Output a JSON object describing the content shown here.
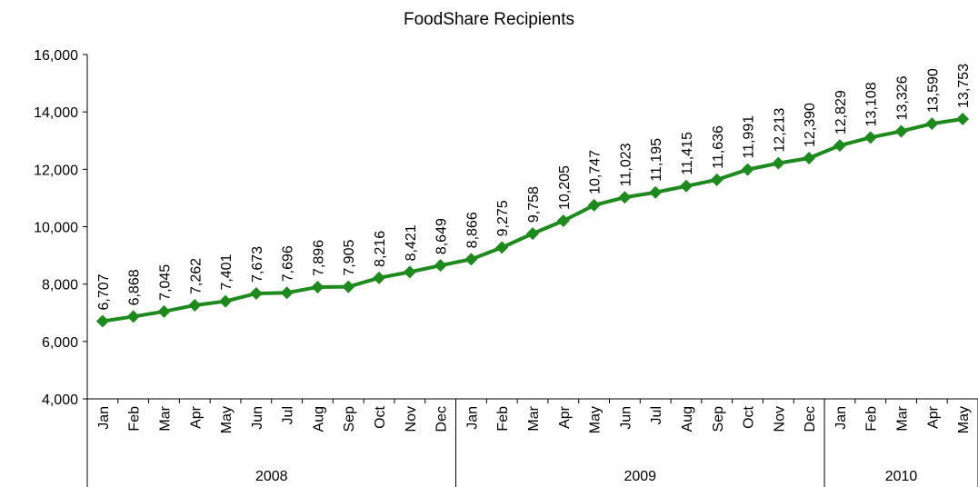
{
  "chart_data": {
    "type": "line",
    "title": "FoodShare Recipients",
    "categories": [
      "Jan",
      "Feb",
      "Mar",
      "Apr",
      "May",
      "Jun",
      "Jul",
      "Aug",
      "Sep",
      "Oct",
      "Nov",
      "Dec",
      "Jan",
      "Feb",
      "Mar",
      "Apr",
      "May",
      "Jun",
      "Jul",
      "Aug",
      "Sep",
      "Oct",
      "Nov",
      "Dec",
      "Jan",
      "Feb",
      "Mar",
      "Apr",
      "May"
    ],
    "groups": [
      {
        "label": "2008",
        "size": 12
      },
      {
        "label": "2009",
        "size": 12
      },
      {
        "label": "2010",
        "size": 5
      }
    ],
    "values": [
      6707,
      6868,
      7045,
      7262,
      7401,
      7673,
      7696,
      7896,
      7905,
      8216,
      8421,
      8649,
      8866,
      9275,
      9758,
      10205,
      10747,
      11023,
      11195,
      11415,
      11636,
      11991,
      12213,
      12390,
      12829,
      13108,
      13326,
      13590,
      13753
    ],
    "value_labels": [
      "6,707",
      "6,868",
      "7,045",
      "7,262",
      "7,401",
      "7,673",
      "7,696",
      "7,896",
      "7,905",
      "8,216",
      "8,421",
      "8,649",
      "8,866",
      "9,275",
      "9,758",
      "10,205",
      "10,747",
      "11,023",
      "11,195",
      "11,415",
      "11,636",
      "11,991",
      "12,213",
      "12,390",
      "12,829",
      "13,108",
      "13,326",
      "13,590",
      "13,753"
    ],
    "color": "#1e8a1e",
    "ylim": [
      4000,
      16000
    ],
    "yticks": [
      {
        "value": 4000,
        "label": "4,000"
      },
      {
        "value": 6000,
        "label": "6,000"
      },
      {
        "value": 8000,
        "label": "8,000"
      },
      {
        "value": 10000,
        "label": "10,000"
      },
      {
        "value": 12000,
        "label": "12,000"
      },
      {
        "value": 14000,
        "label": "14,000"
      },
      {
        "value": 16000,
        "label": "16,000"
      }
    ],
    "grid": false
  }
}
